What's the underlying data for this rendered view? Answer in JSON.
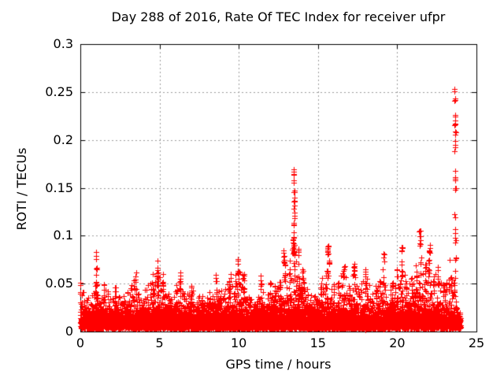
{
  "chart_data": {
    "type": "scatter",
    "title": "Day 288 of 2016, Rate Of TEC Index for receiver ufpr",
    "xlabel": "GPS time / hours",
    "ylabel": "ROTI / TECUs",
    "xlim": [
      0,
      25
    ],
    "ylim": [
      0,
      0.3
    ],
    "xticks": [
      "0",
      "5",
      "10",
      "15",
      "20",
      "25"
    ],
    "xtick_values": [
      0,
      5,
      10,
      15,
      20,
      25
    ],
    "yticks": [
      "0",
      "0.05",
      "0.1",
      "0.15",
      "0.2",
      "0.25",
      "0.3"
    ],
    "ytick_values": [
      0,
      0.05,
      0.1,
      0.15,
      0.2,
      0.25,
      0.3
    ],
    "grid": true,
    "legend": "none",
    "marker": "plus",
    "marker_size_px": 7,
    "marker_color": "#ff0000",
    "grid_color": "#9c9c9c",
    "axis_color": "#000000",
    "background": "#ffffff",
    "x_data_range": [
      0,
      24
    ],
    "y_base_band": [
      0.002,
      0.03
    ],
    "seed": 288,
    "base_points": 9200,
    "envelope": [
      [
        0,
        0.052
      ],
      [
        0.3,
        0.045
      ],
      [
        0.6,
        0.032
      ],
      [
        0.9,
        0.05
      ],
      [
        1.0,
        0.055
      ],
      [
        1.2,
        0.042
      ],
      [
        1.5,
        0.05
      ],
      [
        1.9,
        0.038
      ],
      [
        2.2,
        0.05
      ],
      [
        2.6,
        0.035
      ],
      [
        3.0,
        0.045
      ],
      [
        3.4,
        0.056
      ],
      [
        3.8,
        0.042
      ],
      [
        4.2,
        0.048
      ],
      [
        4.6,
        0.06
      ],
      [
        4.9,
        0.065
      ],
      [
        5.2,
        0.055
      ],
      [
        5.5,
        0.048
      ],
      [
        5.8,
        0.042
      ],
      [
        6.1,
        0.05
      ],
      [
        6.3,
        0.057
      ],
      [
        6.7,
        0.038
      ],
      [
        7.0,
        0.05
      ],
      [
        7.4,
        0.035
      ],
      [
        7.7,
        0.042
      ],
      [
        8.0,
        0.035
      ],
      [
        8.3,
        0.048
      ],
      [
        8.6,
        0.055
      ],
      [
        9.0,
        0.04
      ],
      [
        9.4,
        0.053
      ],
      [
        9.8,
        0.06
      ],
      [
        10.0,
        0.065
      ],
      [
        10.3,
        0.058
      ],
      [
        10.7,
        0.035
      ],
      [
        11.0,
        0.032
      ],
      [
        11.4,
        0.052
      ],
      [
        11.7,
        0.045
      ],
      [
        12.0,
        0.052
      ],
      [
        12.3,
        0.05
      ],
      [
        12.6,
        0.062
      ],
      [
        12.9,
        0.072
      ],
      [
        13.2,
        0.082
      ],
      [
        13.5,
        0.09
      ],
      [
        13.8,
        0.062
      ],
      [
        14.1,
        0.056
      ],
      [
        14.5,
        0.04
      ],
      [
        14.9,
        0.042
      ],
      [
        15.2,
        0.052
      ],
      [
        15.6,
        0.066
      ],
      [
        16.0,
        0.05
      ],
      [
        16.3,
        0.056
      ],
      [
        16.6,
        0.068
      ],
      [
        17.0,
        0.05
      ],
      [
        17.3,
        0.065
      ],
      [
        17.6,
        0.048
      ],
      [
        18.0,
        0.06
      ],
      [
        18.4,
        0.042
      ],
      [
        18.7,
        0.05
      ],
      [
        19.1,
        0.068
      ],
      [
        19.4,
        0.045
      ],
      [
        19.7,
        0.052
      ],
      [
        20.0,
        0.065
      ],
      [
        20.3,
        0.075
      ],
      [
        20.6,
        0.05
      ],
      [
        20.9,
        0.056
      ],
      [
        21.2,
        0.07
      ],
      [
        21.5,
        0.082
      ],
      [
        21.8,
        0.07
      ],
      [
        22.0,
        0.078
      ],
      [
        22.3,
        0.06
      ],
      [
        22.6,
        0.066
      ],
      [
        22.9,
        0.05
      ],
      [
        23.1,
        0.056
      ],
      [
        23.4,
        0.062
      ],
      [
        23.6,
        0.055
      ],
      [
        23.75,
        0.03
      ],
      [
        23.85,
        0.022
      ],
      [
        24.0,
        0.018
      ]
    ],
    "spikes": [
      [
        1.0,
        0.05,
        0.055,
        0.086,
        7
      ],
      [
        3.5,
        0.05,
        0.05,
        0.062,
        4
      ],
      [
        4.85,
        0.07,
        0.055,
        0.075,
        6
      ],
      [
        5.2,
        0.03,
        0.05,
        0.062,
        3
      ],
      [
        6.3,
        0.04,
        0.055,
        0.063,
        3
      ],
      [
        8.55,
        0.03,
        0.055,
        0.062,
        2
      ],
      [
        9.5,
        0.04,
        0.053,
        0.06,
        2
      ],
      [
        9.95,
        0.05,
        0.06,
        0.077,
        5
      ],
      [
        10.35,
        0.04,
        0.055,
        0.062,
        2
      ],
      [
        11.4,
        0.03,
        0.052,
        0.06,
        2
      ],
      [
        12.85,
        0.08,
        0.07,
        0.096,
        9
      ],
      [
        13.47,
        0.07,
        0.15,
        0.172,
        6
      ],
      [
        13.5,
        0.09,
        0.1,
        0.148,
        18
      ],
      [
        13.45,
        0.14,
        0.08,
        0.1,
        16
      ],
      [
        13.75,
        0.06,
        0.07,
        0.09,
        5
      ],
      [
        14.05,
        0.04,
        0.055,
        0.065,
        3
      ],
      [
        15.25,
        0.04,
        0.05,
        0.057,
        2
      ],
      [
        15.63,
        0.09,
        0.08,
        0.09,
        9
      ],
      [
        15.7,
        0.05,
        0.06,
        0.075,
        4
      ],
      [
        16.65,
        0.06,
        0.065,
        0.075,
        4
      ],
      [
        17.3,
        0.08,
        0.062,
        0.072,
        5
      ],
      [
        18.0,
        0.05,
        0.058,
        0.066,
        3
      ],
      [
        19.15,
        0.05,
        0.07,
        0.083,
        4
      ],
      [
        20.3,
        0.08,
        0.078,
        0.09,
        5
      ],
      [
        21.45,
        0.12,
        0.085,
        0.107,
        9
      ],
      [
        22.05,
        0.1,
        0.078,
        0.095,
        7
      ],
      [
        22.55,
        0.04,
        0.06,
        0.068,
        2
      ],
      [
        23.3,
        0.02,
        0.074,
        0.078,
        1
      ],
      [
        23.63,
        0.05,
        0.24,
        0.256,
        5
      ],
      [
        23.66,
        0.08,
        0.205,
        0.235,
        9
      ],
      [
        23.64,
        0.05,
        0.183,
        0.2,
        4
      ],
      [
        23.66,
        0.05,
        0.14,
        0.168,
        7
      ],
      [
        23.65,
        0.04,
        0.118,
        0.127,
        2
      ],
      [
        23.66,
        0.06,
        0.09,
        0.112,
        6
      ],
      [
        23.67,
        0.05,
        0.05,
        0.078,
        5
      ]
    ]
  }
}
